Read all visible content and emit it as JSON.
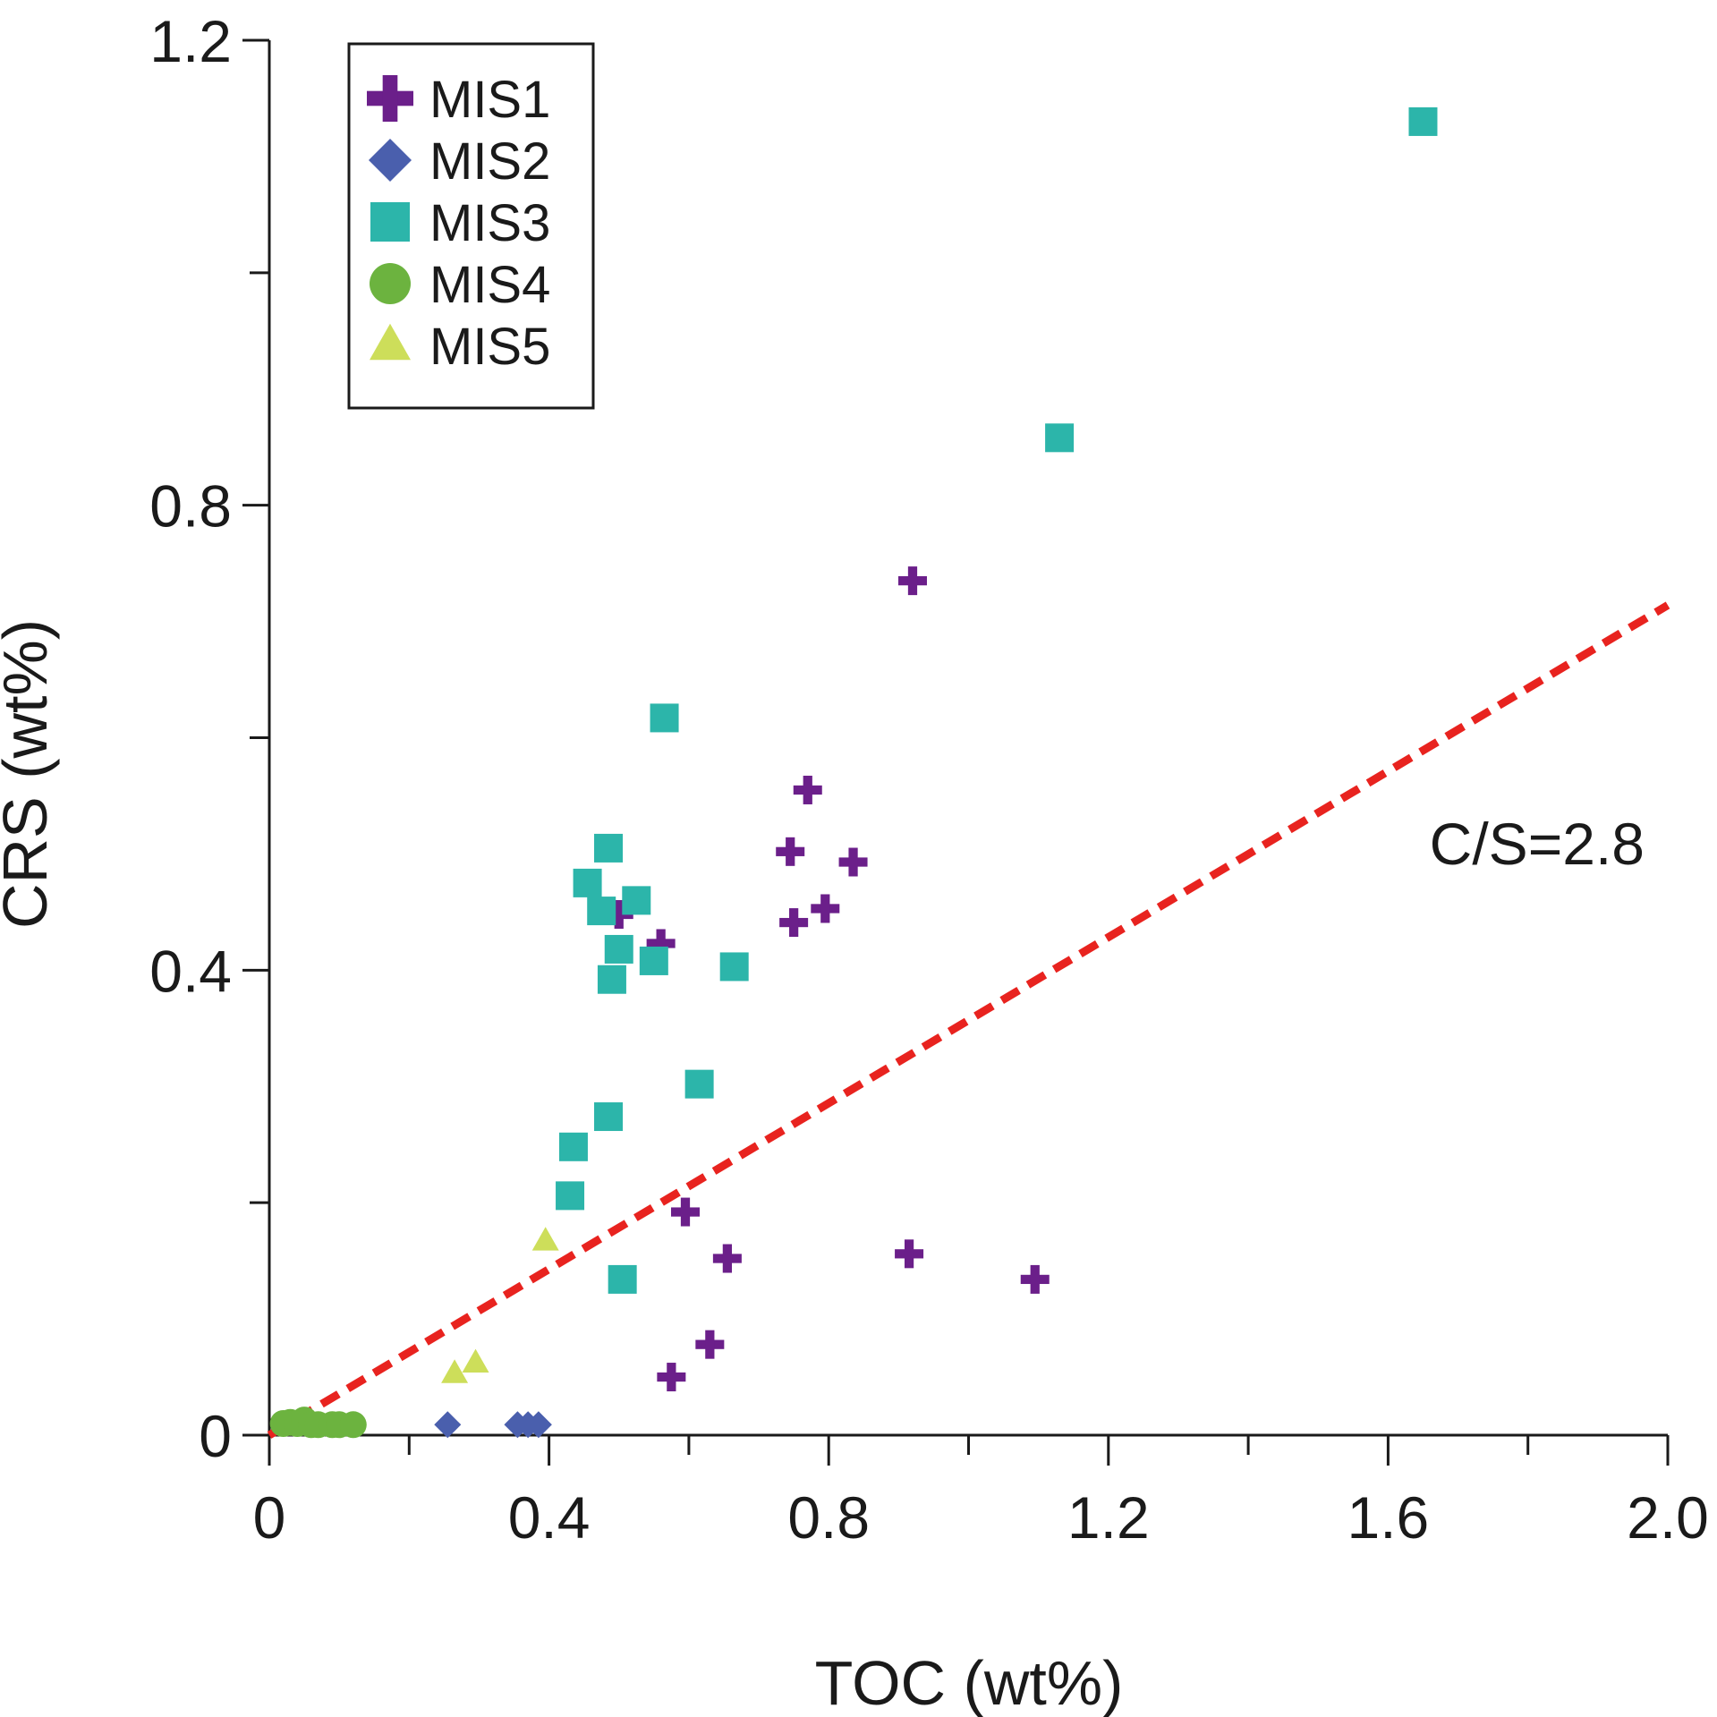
{
  "chart_data": {
    "type": "scatter",
    "title": "",
    "xlabel": "TOC (wt%)",
    "ylabel": "CRS (wt%)",
    "xlim": [
      0,
      2.0
    ],
    "ylim": [
      0,
      1.2
    ],
    "x_ticks": [
      0,
      0.4,
      0.8,
      1.2,
      1.6,
      2.0
    ],
    "x_tick_labels": [
      "0",
      "0.4",
      "0.8",
      "1.2",
      "1.6",
      "2.0"
    ],
    "x_minor_ticks": [
      0.2,
      0.6,
      1.0,
      1.4,
      1.8
    ],
    "y_ticks": [
      0,
      0.4,
      0.8,
      1.2
    ],
    "y_tick_labels": [
      "0",
      "0.4",
      "0.8",
      "1.2"
    ],
    "y_minor_ticks": [
      0.2,
      0.6,
      1.0
    ],
    "grid": false,
    "legend_position": "top-left",
    "series": [
      {
        "name": "MIS1",
        "marker": "plus",
        "color": "#6b1f8a",
        "points": [
          [
            0.92,
            0.735
          ],
          [
            0.77,
            0.555
          ],
          [
            0.745,
            0.502
          ],
          [
            0.835,
            0.493
          ],
          [
            0.795,
            0.453
          ],
          [
            0.75,
            0.441
          ],
          [
            0.5,
            0.448
          ],
          [
            0.56,
            0.423
          ],
          [
            0.595,
            0.192
          ],
          [
            0.655,
            0.152
          ],
          [
            0.915,
            0.156
          ],
          [
            1.095,
            0.134
          ],
          [
            0.63,
            0.078
          ],
          [
            0.575,
            0.05
          ]
        ]
      },
      {
        "name": "MIS2",
        "marker": "diamond",
        "color": "#4a5fad",
        "points": [
          [
            0.255,
            0.009
          ],
          [
            0.355,
            0.009
          ],
          [
            0.37,
            0.009
          ],
          [
            0.385,
            0.009
          ]
        ]
      },
      {
        "name": "MIS3",
        "marker": "square",
        "color": "#2cb5aa",
        "points": [
          [
            1.65,
            1.13
          ],
          [
            1.13,
            0.858
          ],
          [
            0.565,
            0.617
          ],
          [
            0.485,
            0.505
          ],
          [
            0.455,
            0.475
          ],
          [
            0.475,
            0.451
          ],
          [
            0.525,
            0.46
          ],
          [
            0.5,
            0.418
          ],
          [
            0.49,
            0.392
          ],
          [
            0.55,
            0.408
          ],
          [
            0.665,
            0.403
          ],
          [
            0.615,
            0.302
          ],
          [
            0.485,
            0.274
          ],
          [
            0.435,
            0.248
          ],
          [
            0.43,
            0.206
          ],
          [
            0.505,
            0.134
          ]
        ]
      },
      {
        "name": "MIS4",
        "marker": "circle",
        "color": "#6cb33f",
        "points": [
          [
            0.02,
            0.01
          ],
          [
            0.03,
            0.011
          ],
          [
            0.04,
            0.01
          ],
          [
            0.05,
            0.013
          ],
          [
            0.06,
            0.009
          ],
          [
            0.07,
            0.009
          ],
          [
            0.09,
            0.009
          ],
          [
            0.1,
            0.009
          ],
          [
            0.12,
            0.009
          ]
        ]
      },
      {
        "name": "MIS5",
        "marker": "triangle",
        "color": "#cdde5a",
        "points": [
          [
            0.395,
            0.167
          ],
          [
            0.265,
            0.053
          ],
          [
            0.295,
            0.062
          ]
        ]
      }
    ],
    "reference_line": {
      "label": "C/S=2.8",
      "slope": 0.357,
      "x_range": [
        0,
        2.0
      ],
      "color": "#e8231f",
      "style": "dashed"
    }
  }
}
